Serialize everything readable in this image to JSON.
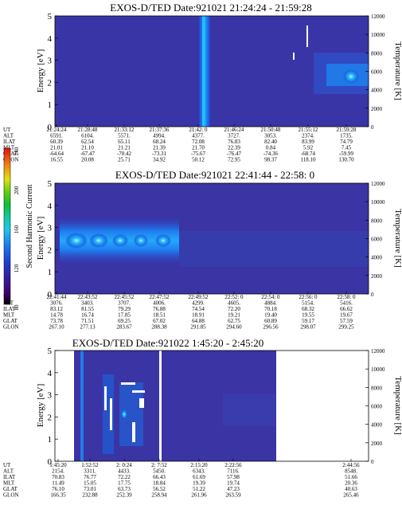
{
  "chart_data": [
    {
      "type": "heatmap",
      "title": "EXOS-D/TED   Date:921021  21:24:24 - 21:59:28",
      "ylabel": "Energy [eV]",
      "ylabel_right": "Temperature [K]",
      "ylim": [
        0,
        5
      ],
      "yticks": [
        "0",
        "1",
        "2",
        "3",
        "4",
        "5"
      ],
      "ylim_right": [
        0,
        12000
      ],
      "yticks_right": [
        "0",
        "2000",
        "4000",
        "6000",
        "8000",
        "10000",
        "12000"
      ],
      "table": {
        "row_labels": [
          "UT",
          "ALT",
          "ILAT",
          "MLT",
          "GLAT",
          "GLON"
        ],
        "columns": [
          [
            "21:24:24",
            "6591.",
            "60.39",
            "21.01",
            "-64.64",
            "16.55"
          ],
          [
            "21:28:48",
            "6104.",
            "62.54",
            "21.10",
            "-67.47",
            "20.08"
          ],
          [
            "21:33:12",
            "5571.",
            "65.11",
            "21.21",
            "-70.42",
            "25.71"
          ],
          [
            "21:37:36",
            "4994.",
            "68.24",
            "21.39",
            "-73.31",
            "34.92"
          ],
          [
            "21:42: 0",
            "4377.",
            "72.08",
            "21.70",
            "-75.67",
            "50.12"
          ],
          [
            "21:46:24",
            "3727.",
            "76.83",
            "22.39",
            "-76.47",
            "72.95"
          ],
          [
            "21:50:48",
            "3053.",
            "82.40",
            "0.84",
            "-74.36",
            "98.37"
          ],
          [
            "21:55:12",
            "2374.",
            "83.99",
            "5.92",
            "-68.74",
            "118.10"
          ],
          [
            "21:59:28",
            "1735.",
            "74.79",
            "7.45",
            "-59.99",
            "130.70"
          ]
        ]
      }
    },
    {
      "type": "heatmap",
      "title": "EXOS-D/TED   Date:921021  22:41:44 - 22:58: 0",
      "ylabel": "Energy [eV]",
      "ylabel_right": "Temperature [K]",
      "ylim": [
        0,
        5
      ],
      "yticks": [
        "0",
        "1",
        "2",
        "3",
        "4",
        "5"
      ],
      "ylim_right": [
        0,
        12000
      ],
      "yticks_right": [
        "0",
        "2000",
        "4000",
        "6000",
        "8000",
        "10000",
        "12000"
      ],
      "table": {
        "row_labels": [
          "UT",
          "ALT",
          "ILAT",
          "MLT",
          "GLAT",
          "GLON"
        ],
        "columns": [
          [
            "22:41:44",
            "3076.",
            "83.12",
            "14.78",
            "73.78",
            "267.10"
          ],
          [
            "22:43:52",
            "3403.",
            "81.55",
            "16.74",
            "71.51",
            "277.13"
          ],
          [
            "22:45:52",
            "3707.",
            "79.29",
            "17.85",
            "69.25",
            "283.67"
          ],
          [
            "22:47:52",
            "4006.",
            "76.88",
            "18.51",
            "67.02",
            "288.38"
          ],
          [
            "22:49:52",
            "4299.",
            "74.54",
            "18.91",
            "64.88",
            "291.85"
          ],
          [
            "22:52: 0",
            "4605.",
            "72.20",
            "19.21",
            "62.75",
            "294.60"
          ],
          [
            "22:54: 0",
            "4884.",
            "70.18",
            "19.40",
            "60.89",
            "296.56"
          ],
          [
            "22:56: 0",
            "5154.",
            "68.32",
            "19.55",
            "59.17",
            "298.07"
          ],
          [
            "22:58: 0",
            "5416.",
            "66.62",
            "19.67",
            "57.59",
            "299.25"
          ]
        ]
      }
    },
    {
      "type": "heatmap",
      "title": "EXOS-D/TED   Date:921022  1:45:20 - 2:45:20",
      "ylabel": "Energy [eV]",
      "ylabel_right": "Temperature [K]",
      "ylim": [
        0,
        5
      ],
      "yticks": [
        "0",
        "1",
        "2",
        "3",
        "4",
        "5"
      ],
      "ylim_right": [
        0,
        12000
      ],
      "yticks_right": [
        "0",
        "2000",
        "4000",
        "6000",
        "8000",
        "10000",
        "12000"
      ],
      "table": {
        "row_labels": [
          "UT",
          "ALT",
          "ILAT",
          "MLT",
          "GLAT",
          "GLON"
        ],
        "columns": [
          [
            "1:45:20",
            "2154.",
            "70.83",
            "11.49",
            "76.10",
            "166.35"
          ],
          [
            "1:52:52",
            "3311.",
            "76.77",
            "15.05",
            "73.01",
            "232.88"
          ],
          [
            "2: 0:24",
            "4433.",
            "72.22",
            "17.75",
            "63.73",
            "252.39"
          ],
          [
            "2: 7:52",
            "5450.",
            "66.43",
            "18.84",
            "56.52",
            "258.94"
          ],
          [
            "2:15:20",
            "6343.",
            "61.69",
            "19.39",
            "51.22",
            "261.96"
          ],
          [
            "2:22:56",
            "7116.",
            "57.98",
            "19.74",
            "47.23",
            "263.59"
          ],
          [
            "2:44:56",
            "8548.",
            "51.66",
            "20.36",
            "40.63",
            "265.46"
          ]
        ]
      }
    }
  ],
  "colorbar": {
    "label": "Second Harmonic Current",
    "ticks": [
      "80",
      "120",
      "160",
      "200",
      "240"
    ]
  }
}
